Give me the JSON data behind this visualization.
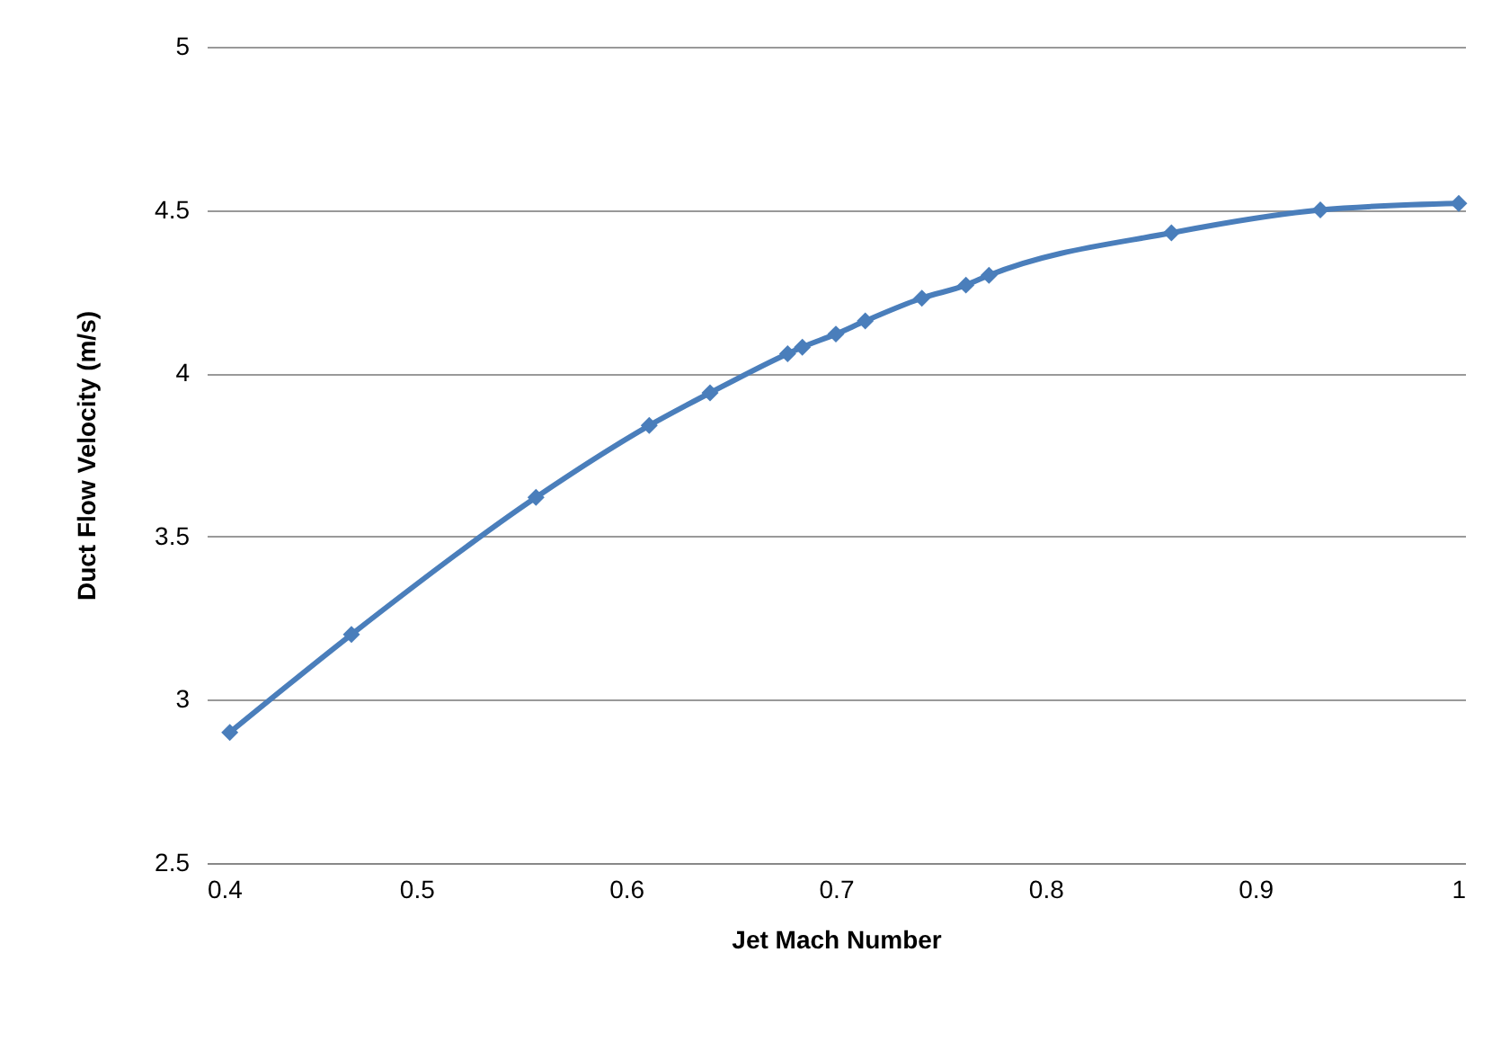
{
  "chart_data": {
    "type": "line",
    "xlabel": "Jet Mach Number",
    "ylabel": "Duct Flow Velocity (m/s)",
    "x": [
      0.411,
      0.469,
      0.557,
      0.611,
      0.64,
      0.677,
      0.684,
      0.7,
      0.714,
      0.741,
      0.762,
      0.773,
      0.86,
      0.931,
      0.997
    ],
    "series": [
      {
        "color": "#4a7ebb",
        "values": [
          2.9,
          3.2,
          3.62,
          3.84,
          3.94,
          4.06,
          4.08,
          4.12,
          4.16,
          4.23,
          4.27,
          4.3,
          4.43,
          4.5,
          4.52
        ]
      }
    ],
    "xlim": [
      0.4,
      1
    ],
    "xticks": [
      0.4,
      0.5,
      0.6,
      0.7,
      0.8,
      0.9,
      1
    ],
    "ylim": [
      2.5,
      5
    ],
    "yticks": [
      2.5,
      3,
      3.5,
      4,
      4.5,
      5
    ],
    "grid": "y",
    "marker": "diamond",
    "line_style": "solid"
  }
}
